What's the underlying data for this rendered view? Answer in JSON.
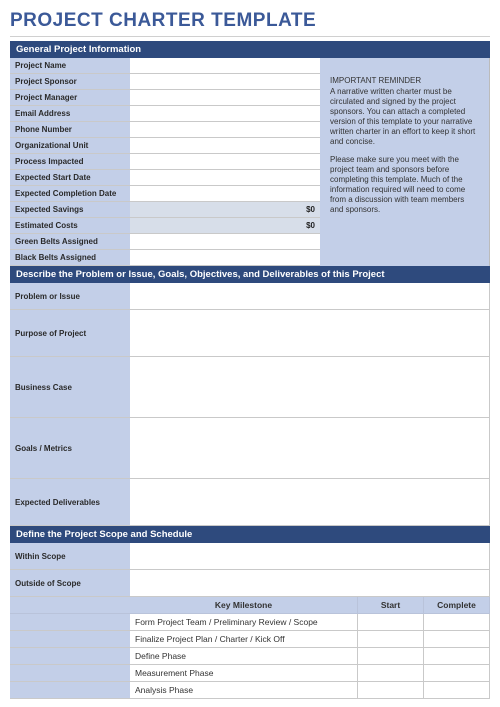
{
  "title": "PROJECT CHARTER TEMPLATE",
  "colors": {
    "header_bg": "#2e4a7d",
    "label_bg": "#c3cfe8",
    "title_color": "#3b5998",
    "grey_cell": "#d7dee9"
  },
  "section1": {
    "header": "General Project Information",
    "rows": [
      {
        "label": "Project Name",
        "value": ""
      },
      {
        "label": "Project Sponsor",
        "value": ""
      },
      {
        "label": "Project Manager",
        "value": ""
      },
      {
        "label": "Email Address",
        "value": ""
      },
      {
        "label": "Phone Number",
        "value": ""
      },
      {
        "label": "Organizational Unit",
        "value": ""
      },
      {
        "label": "Process Impacted",
        "value": ""
      },
      {
        "label": "Expected Start Date",
        "value": ""
      },
      {
        "label": "Expected Completion Date",
        "value": ""
      },
      {
        "label": "Expected Savings",
        "value": "$0",
        "grey": true
      },
      {
        "label": "Estimated Costs",
        "value": "$0",
        "grey": true
      },
      {
        "label": "Green Belts Assigned",
        "value": ""
      },
      {
        "label": "Black Belts Assigned",
        "value": ""
      }
    ],
    "reminder": {
      "title": "IMPORTANT REMINDER",
      "p1": "A narrative written charter must be circulated and signed by the project sponsors. You can attach a completed version of this template to your narrative written charter in an effort to keep it short and concise.",
      "p2": "Please make sure you meet with the project team and sponsors before completing this template. Much of the information required will need to come from a discussion with team members and sponsors."
    }
  },
  "section2": {
    "header": "Describe the Problem or Issue, Goals, Objectives, and Deliverables of this Project",
    "rows": [
      {
        "label": "Problem or Issue",
        "h": "h-sm"
      },
      {
        "label": "Purpose of Project",
        "h": "h-md"
      },
      {
        "label": "Business Case",
        "h": "h-lg"
      },
      {
        "label": "Goals / Metrics",
        "h": "h-lg"
      },
      {
        "label": "Expected Deliverables",
        "h": "h-md"
      }
    ]
  },
  "section3": {
    "header": "Define the Project Scope and Schedule",
    "scope": [
      {
        "label": "Within Scope"
      },
      {
        "label": "Outside of Scope"
      }
    ],
    "ms_headers": {
      "km": "Key Milestone",
      "start": "Start",
      "complete": "Complete"
    },
    "milestones": [
      "Form Project Team / Preliminary Review / Scope",
      "Finalize Project Plan / Charter / Kick Off",
      "Define Phase",
      "Measurement Phase",
      "Analysis Phase"
    ]
  }
}
